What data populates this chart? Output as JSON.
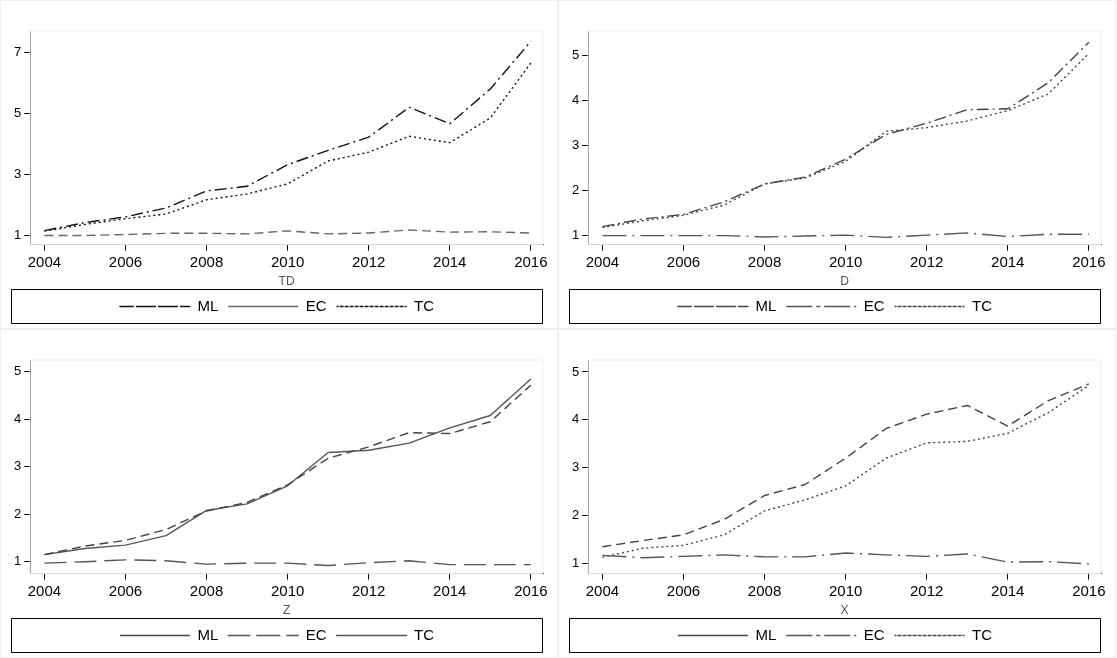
{
  "chart_data": [
    {
      "type": "line",
      "xlabel": "TD",
      "x": [
        2004,
        2005,
        2006,
        2007,
        2008,
        2009,
        2010,
        2011,
        2012,
        2013,
        2014,
        2015,
        2016
      ],
      "xlim": [
        2003.65,
        2016.3
      ],
      "xticks": [
        2004,
        2006,
        2008,
        2010,
        2012,
        2014,
        2016
      ],
      "ylim": [
        0.7,
        7.7
      ],
      "yticks": [
        1,
        3,
        5,
        7
      ],
      "grid": false,
      "legend": "bottom",
      "marker": "none",
      "series": [
        {
          "name": "ML",
          "color": "#111111",
          "line_style": "dashdot",
          "values": [
            1.16,
            1.42,
            1.61,
            1.9,
            2.46,
            2.61,
            3.32,
            3.79,
            4.22,
            5.2,
            4.66,
            5.8,
            7.36
          ]
        },
        {
          "name": "EC",
          "color": "#666666",
          "line_style": "dashed",
          "values": [
            1.0,
            1.0,
            1.03,
            1.07,
            1.07,
            1.05,
            1.15,
            1.05,
            1.08,
            1.18,
            1.11,
            1.12,
            1.08
          ]
        },
        {
          "name": "TC",
          "color": "#111111",
          "line_style": "dotted",
          "values": [
            1.14,
            1.36,
            1.55,
            1.7,
            2.17,
            2.36,
            2.69,
            3.44,
            3.73,
            4.25,
            4.04,
            4.85,
            6.65
          ]
        }
      ]
    },
    {
      "type": "line",
      "xlabel": "D",
      "x": [
        2004,
        2005,
        2006,
        2007,
        2008,
        2009,
        2010,
        2011,
        2012,
        2013,
        2014,
        2015,
        2016
      ],
      "xlim": [
        2003.65,
        2016.3
      ],
      "xticks": [
        2004,
        2006,
        2008,
        2010,
        2012,
        2014,
        2016
      ],
      "ylim": [
        0.8,
        5.55
      ],
      "yticks": [
        1,
        2,
        3,
        4,
        5
      ],
      "grid": false,
      "legend": "bottom",
      "marker": "none",
      "series": [
        {
          "name": "ML",
          "color": "#444444",
          "line_style": "dashdot",
          "values": [
            1.2,
            1.37,
            1.47,
            1.75,
            2.15,
            2.3,
            2.7,
            3.25,
            3.5,
            3.8,
            3.82,
            4.4,
            5.3
          ]
        },
        {
          "name": "EC",
          "color": "#555555",
          "line_style": "longdashdot",
          "values": [
            1.0,
            1.0,
            1.0,
            1.0,
            0.97,
            0.99,
            1.01,
            0.96,
            1.01,
            1.06,
            0.98,
            1.03,
            1.03
          ]
        },
        {
          "name": "TC",
          "color": "#444444",
          "line_style": "dotted",
          "values": [
            1.18,
            1.33,
            1.45,
            1.68,
            2.15,
            2.28,
            2.65,
            3.32,
            3.4,
            3.55,
            3.78,
            4.15,
            5.05
          ]
        }
      ]
    },
    {
      "type": "line",
      "xlabel": "Z",
      "x": [
        2004,
        2005,
        2006,
        2007,
        2008,
        2009,
        2010,
        2011,
        2012,
        2013,
        2014,
        2015,
        2016
      ],
      "xlim": [
        2003.65,
        2016.3
      ],
      "xticks": [
        2004,
        2006,
        2008,
        2010,
        2012,
        2014,
        2016
      ],
      "ylim": [
        0.75,
        5.25
      ],
      "yticks": [
        1,
        2,
        3,
        4,
        5
      ],
      "grid": false,
      "legend": "bottom",
      "marker": "none",
      "series": [
        {
          "name": "ML",
          "color": "#444444",
          "line_style": "dashed",
          "values": [
            1.15,
            1.33,
            1.45,
            1.68,
            2.07,
            2.25,
            2.62,
            3.18,
            3.42,
            3.72,
            3.7,
            3.95,
            4.72
          ]
        },
        {
          "name": "EC",
          "color": "#555555",
          "line_style": "longdashed",
          "values": [
            0.97,
            1.0,
            1.04,
            1.02,
            0.95,
            0.97,
            0.97,
            0.92,
            0.98,
            1.02,
            0.94,
            0.94,
            0.94
          ]
        },
        {
          "name": "TC",
          "color": "#555555",
          "line_style": "solid",
          "values": [
            1.15,
            1.28,
            1.35,
            1.55,
            2.08,
            2.22,
            2.6,
            3.3,
            3.35,
            3.5,
            3.82,
            4.08,
            4.85
          ]
        }
      ]
    },
    {
      "type": "line",
      "xlabel": "X",
      "x": [
        2004,
        2005,
        2006,
        2007,
        2008,
        2009,
        2010,
        2011,
        2012,
        2013,
        2014,
        2015,
        2016
      ],
      "xlim": [
        2003.65,
        2016.3
      ],
      "xticks": [
        2004,
        2006,
        2008,
        2010,
        2012,
        2014,
        2016
      ],
      "ylim": [
        0.79,
        5.25
      ],
      "yticks": [
        1,
        2,
        3,
        4,
        5
      ],
      "grid": false,
      "legend": "bottom",
      "marker": "none",
      "series": [
        {
          "name": "ML",
          "color": "#444444",
          "line_style": "dashed",
          "values": [
            1.35,
            1.48,
            1.6,
            1.92,
            2.42,
            2.65,
            3.2,
            3.82,
            4.12,
            4.3,
            3.87,
            4.4,
            4.75
          ]
        },
        {
          "name": "EC",
          "color": "#555555",
          "line_style": "longdashdot",
          "values": [
            1.17,
            1.12,
            1.15,
            1.18,
            1.14,
            1.14,
            1.22,
            1.18,
            1.15,
            1.2,
            1.03,
            1.04,
            0.99
          ]
        },
        {
          "name": "TC",
          "color": "#444444",
          "line_style": "dotted",
          "values": [
            1.13,
            1.32,
            1.38,
            1.6,
            2.1,
            2.33,
            2.62,
            3.2,
            3.52,
            3.55,
            3.72,
            4.15,
            4.72
          ]
        }
      ]
    }
  ]
}
